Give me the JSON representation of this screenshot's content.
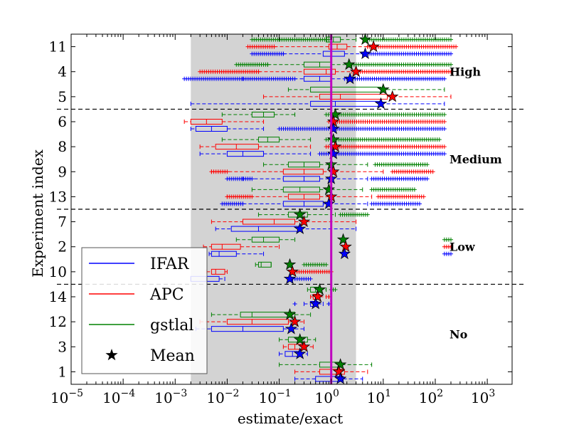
{
  "chart_data": {
    "type": "boxplot",
    "orientation": "horizontal",
    "xscale": "log",
    "xlabel": "estimate/exact",
    "ylabel": "Experiment index",
    "xlim": [
      1e-05,
      3000
    ],
    "x_ticks": [
      {
        "value": 1e-05,
        "base": "10",
        "exp": "−5"
      },
      {
        "value": 0.0001,
        "base": "10",
        "exp": "−4"
      },
      {
        "value": 0.001,
        "base": "10",
        "exp": "−3"
      },
      {
        "value": 0.01,
        "base": "10",
        "exp": "−2"
      },
      {
        "value": 0.1,
        "base": "10",
        "exp": "−1"
      },
      {
        "value": 1,
        "base": "10",
        "exp": "0"
      },
      {
        "value": 10,
        "base": "10",
        "exp": "1"
      },
      {
        "value": 100,
        "base": "10",
        "exp": "2"
      },
      {
        "value": 1000,
        "base": "10",
        "exp": "3"
      }
    ],
    "shaded_region": [
      0.002,
      3
    ],
    "reference_line": 1,
    "colors": {
      "IFAR": "#0000ff",
      "APC": "#ff0000",
      "gstlal": "#008000",
      "reference": "#bf00bf",
      "shade": "#d3d3d3"
    },
    "legend": [
      {
        "label": "IFAR",
        "color": "#0000ff",
        "kind": "line"
      },
      {
        "label": "APC",
        "color": "#ff0000",
        "kind": "line"
      },
      {
        "label": "gstlal",
        "color": "#008000",
        "kind": "line"
      },
      {
        "label": "Mean",
        "color": "#000000",
        "kind": "star"
      }
    ],
    "legend_position": "lower-left",
    "groups": [
      {
        "label": "High",
        "experiments": [
          "11",
          "4",
          "5"
        ]
      },
      {
        "label": "Medium",
        "experiments": [
          "6",
          "8",
          "9",
          "13"
        ]
      },
      {
        "label": "Low",
        "experiments": [
          "7",
          "2",
          "10"
        ]
      },
      {
        "label": "No",
        "experiments": [
          "14",
          "12",
          "3",
          "1"
        ]
      }
    ],
    "experiments": [
      {
        "index": "11",
        "gstlal": {
          "wl": 0.1,
          "q1": 0.8,
          "med": 1.1,
          "q3": 1.5,
          "wh": 3,
          "fl": [
            0.03,
            0.9
          ],
          "fh": [
            5,
            200
          ],
          "mean": 4.5
        },
        "APC": {
          "wl": 0.08,
          "q1": 0.9,
          "med": 1.3,
          "q3": 2,
          "wh": 5,
          "fl": [
            0.025,
            0.08
          ],
          "fh": [
            5,
            250
          ],
          "mean": 6.5
        },
        "IFAR": {
          "wl": 0.12,
          "q1": 0.7,
          "med": 1.0,
          "q3": 1.8,
          "wh": 4,
          "fl": [
            0.03,
            0.12
          ],
          "fh": [
            4,
            200
          ],
          "mean": 4.5
        }
      },
      {
        "index": "4",
        "gstlal": {
          "wl": 0.06,
          "q1": 0.3,
          "med": 0.6,
          "q3": 1.0,
          "wh": 2.0,
          "fl": [
            0.015,
            0.06
          ],
          "fh": [
            2.5,
            200
          ],
          "mean": 2.2
        },
        "APC": {
          "wl": 0.04,
          "q1": 0.3,
          "med": 0.8,
          "q3": 1.2,
          "wh": 2.5,
          "fl": [
            0.003,
            0.04
          ],
          "fh": [
            3,
            200
          ],
          "mean": 3.0
        },
        "IFAR": {
          "wl": 0.02,
          "q1": 0.3,
          "med": 0.6,
          "q3": 1.0,
          "wh": 1.8,
          "fl": [
            0.0015,
            0.2
          ],
          "fh": [
            2,
            150
          ],
          "mean": 2.3
        }
      },
      {
        "index": "5",
        "gstlal": {
          "wl": 0.15,
          "q1": 0.4,
          "med": 1.0,
          "q3": 9,
          "wh": 150,
          "fl": [],
          "fh": [],
          "mean": 10
        },
        "APC": {
          "wl": 0.05,
          "q1": 0.6,
          "med": 1.5,
          "q3": 12,
          "wh": 200,
          "fl": [],
          "fh": [],
          "mean": 15
        },
        "IFAR": {
          "wl": 0.002,
          "q1": 0.4,
          "med": 1.2,
          "q3": 9,
          "wh": 150,
          "fl": [],
          "fh": [],
          "mean": 9
        }
      },
      {
        "index": "6",
        "gstlal": {
          "wl": 0.008,
          "q1": 0.03,
          "med": 0.05,
          "q3": 0.08,
          "wh": 0.2,
          "fl": [],
          "fh": [
            0.8,
            150
          ],
          "mean": 1.2
        },
        "APC": {
          "wl": 0.0015,
          "q1": 0.002,
          "med": 0.004,
          "q3": 0.008,
          "wh": 0.05,
          "fl": [],
          "fh": [
            0.9,
            150
          ],
          "mean": 1.1
        },
        "IFAR": {
          "wl": 0.002,
          "q1": 0.0025,
          "med": 0.005,
          "q3": 0.01,
          "wh": 0.05,
          "fl": [],
          "fh": [
            0.1,
            150
          ],
          "mean": 1.1
        }
      },
      {
        "index": "8",
        "gstlal": {
          "wl": 0.008,
          "q1": 0.04,
          "med": 0.06,
          "q3": 0.1,
          "wh": 0.4,
          "fl": [],
          "fh": [
            0.8,
            120
          ],
          "mean": 1.1
        },
        "APC": {
          "wl": 0.003,
          "q1": 0.006,
          "med": 0.015,
          "q3": 0.04,
          "wh": 0.4,
          "fl": [],
          "fh": [
            0.8,
            150
          ],
          "mean": 1.2
        },
        "IFAR": {
          "wl": 0.003,
          "q1": 0.01,
          "med": 0.02,
          "q3": 0.05,
          "wh": 0.4,
          "fl": [],
          "fh": [
            0.6,
            150
          ],
          "mean": 1.1
        }
      },
      {
        "index": "9",
        "gstlal": {
          "wl": 0.05,
          "q1": 0.15,
          "med": 0.3,
          "q3": 0.6,
          "wh": 5,
          "fl": [],
          "fh": [
            7,
            70
          ],
          "mean": 1.0
        },
        "APC": {
          "wl": 0.005,
          "q1": 0.12,
          "med": 0.3,
          "q3": 0.7,
          "wh": 10,
          "fl": [
            0.005,
            0.01
          ],
          "fh": [
            15,
            90
          ],
          "mean": 1.1
        },
        "IFAR": {
          "wl": 0.02,
          "q1": 0.12,
          "med": 0.3,
          "q3": 0.6,
          "wh": 5,
          "fl": [
            0.01,
            0.03
          ],
          "fh": [
            6,
            70
          ],
          "mean": 1.0
        }
      },
      {
        "index": "13",
        "gstlal": {
          "wl": 0.03,
          "q1": 0.12,
          "med": 0.25,
          "q3": 0.6,
          "wh": 4,
          "fl": [],
          "fh": [
            6,
            40
          ],
          "mean": 0.9
        },
        "APC": {
          "wl": 0.01,
          "q1": 0.15,
          "med": 0.3,
          "q3": 0.6,
          "wh": 6,
          "fl": [
            0.01,
            0.03
          ],
          "fh": [
            8,
            60
          ],
          "mean": 1.0
        },
        "IFAR": {
          "wl": 0.02,
          "q1": 0.12,
          "med": 0.3,
          "q3": 0.7,
          "wh": 5,
          "fl": [
            0.008,
            0.02
          ],
          "fh": [
            6,
            50
          ],
          "mean": 0.9
        }
      },
      {
        "index": "7",
        "gstlal": {
          "wl": 0.04,
          "q1": 0.15,
          "med": 0.25,
          "q3": 0.35,
          "wh": 1.2,
          "fl": [],
          "fh": [
            1.5,
            5
          ],
          "mean": 0.25
        },
        "APC": {
          "wl": 0.005,
          "q1": 0.02,
          "med": 0.08,
          "q3": 0.2,
          "wh": 3,
          "fl": [],
          "fh": [],
          "mean": 0.3
        },
        "IFAR": {
          "wl": 0.006,
          "q1": 0.012,
          "med": 0.04,
          "q3": 0.25,
          "wh": 3,
          "fl": [],
          "fh": [],
          "mean": 0.25
        }
      },
      {
        "index": "2",
        "gstlal": {
          "wl": 0.015,
          "q1": 0.03,
          "med": 0.05,
          "q3": 0.1,
          "wh": 0.2,
          "fl": [],
          "fh": [
            150,
            200
          ],
          "mean": 1.7
        },
        "APC": {
          "wl": 0.0035,
          "q1": 0.005,
          "med": 0.008,
          "q3": 0.018,
          "wh": 0.1,
          "fl": [],
          "fh": [
            150,
            200
          ],
          "mean": 1.9
        },
        "IFAR": {
          "wl": 0.0045,
          "q1": 0.005,
          "med": 0.007,
          "q3": 0.015,
          "wh": 0.05,
          "fl": [],
          "fh": [
            150,
            200
          ],
          "mean": 1.8
        }
      },
      {
        "index": "10",
        "gstlal": {
          "wl": 0.035,
          "q1": 0.04,
          "med": 0.045,
          "q3": 0.07,
          "wh": 0.07,
          "fl": [],
          "fh": [
            0.3,
            0.8
          ],
          "mean": 0.16
        },
        "APC": {
          "wl": 0.004,
          "q1": 0.005,
          "med": 0.006,
          "q3": 0.009,
          "wh": 0.01,
          "fl": [],
          "fh": [
            0.2,
            1.0
          ],
          "mean": 0.18
        },
        "IFAR": {
          "wl": 0.002,
          "q1": 0.002,
          "med": 0.004,
          "q3": 0.007,
          "wh": 0.009,
          "fl": [],
          "fh": [
            0.15,
            0.4
          ],
          "mean": 0.16
        }
      },
      {
        "index": "14",
        "gstlal": {
          "wl": 0.35,
          "q1": 0.4,
          "med": 0.5,
          "q3": 0.6,
          "wh": 0.8,
          "fl": [],
          "fh": [
            1.0,
            1.2
          ],
          "mean": 0.6
        },
        "APC": {
          "wl": 0.4,
          "q1": 0.45,
          "med": 0.5,
          "q3": 0.6,
          "wh": 0.8,
          "fl": [],
          "fh": [
            0.9
          ],
          "mean": 0.55
        },
        "IFAR": {
          "wl": 0.3,
          "q1": 0.4,
          "med": 0.45,
          "q3": 0.55,
          "wh": 0.7,
          "fl": [
            0.2
          ],
          "fh": [
            0.9
          ],
          "mean": 0.5
        }
      },
      {
        "index": "12",
        "gstlal": {
          "wl": 0.005,
          "q1": 0.018,
          "med": 0.03,
          "q3": 0.2,
          "wh": 0.4,
          "fl": [],
          "fh": [],
          "mean": 0.16
        },
        "APC": {
          "wl": 0.003,
          "q1": 0.01,
          "med": 0.03,
          "q3": 0.15,
          "wh": 0.3,
          "fl": [],
          "fh": [],
          "mean": 0.2
        },
        "IFAR": {
          "wl": 0.0025,
          "q1": 0.005,
          "med": 0.02,
          "q3": 0.12,
          "wh": 0.3,
          "fl": [],
          "fh": [],
          "mean": 0.17
        }
      },
      {
        "index": "3",
        "gstlal": {
          "wl": 0.1,
          "q1": 0.15,
          "med": 0.25,
          "q3": 0.35,
          "wh": 0.5,
          "fl": [],
          "fh": [],
          "mean": 0.25
        },
        "APC": {
          "wl": 0.12,
          "q1": 0.15,
          "med": 0.2,
          "q3": 0.3,
          "wh": 0.45,
          "fl": [],
          "fh": [],
          "mean": 0.3
        },
        "IFAR": {
          "wl": 0.1,
          "q1": 0.13,
          "med": 0.18,
          "q3": 0.25,
          "wh": 0.35,
          "fl": [],
          "fh": [],
          "mean": 0.25
        }
      },
      {
        "index": "1",
        "gstlal": {
          "wl": 0.1,
          "q1": 0.6,
          "med": 1.0,
          "q3": 1.6,
          "wh": 6,
          "fl": [],
          "fh": [],
          "mean": 1.5
        },
        "APC": {
          "wl": 0.2,
          "q1": 0.6,
          "med": 1.0,
          "q3": 1.8,
          "wh": 5,
          "fl": [],
          "fh": [],
          "mean": 1.4
        },
        "IFAR": {
          "wl": 0.2,
          "q1": 0.5,
          "med": 1.0,
          "q3": 1.7,
          "wh": 4,
          "fl": [],
          "fh": [],
          "mean": 1.5
        }
      }
    ]
  }
}
